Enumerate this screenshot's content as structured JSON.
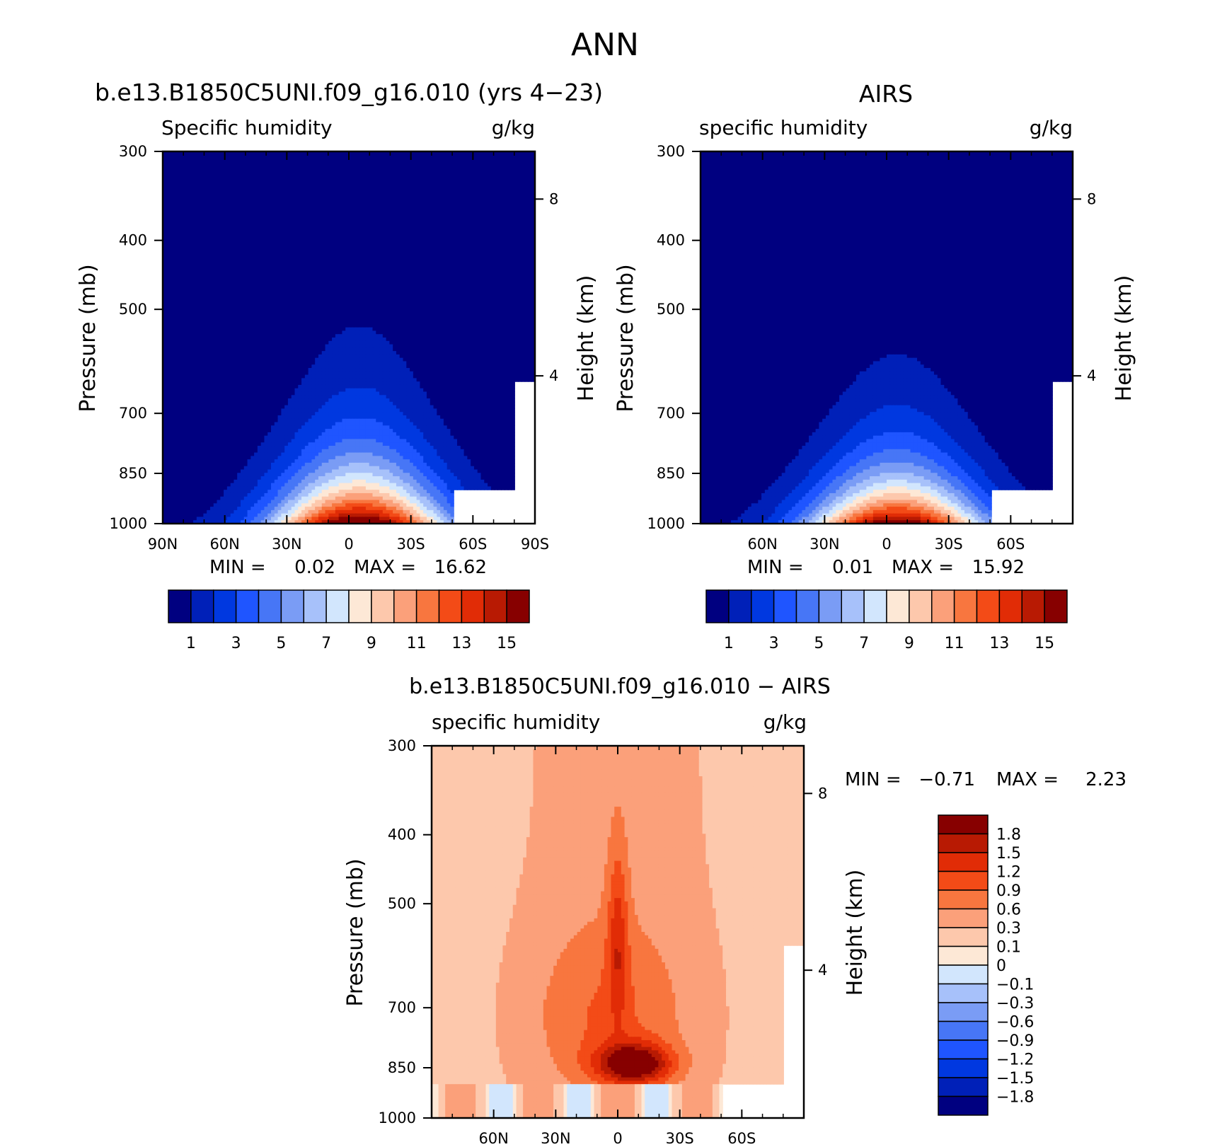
{
  "page": {
    "title": "ANN"
  },
  "chart_data": [
    {
      "type": "heatmap",
      "title": "b.e13.B1850C5UNI.f09_g16.010 (yrs 4−23)",
      "left_label": "Specific humidity",
      "right_label": "g/kg",
      "ylabel": "Pressure (mb)",
      "ylabel_right": "Height (km)",
      "x_ticks": [
        "90N",
        "60N",
        "30N",
        "0",
        "30S",
        "60S",
        "90S"
      ],
      "y_ticks": [
        "300",
        "400",
        "500",
        "700",
        "850",
        "1000"
      ],
      "y_right_ticks": [
        "8",
        "4"
      ],
      "min_label": "MIN =",
      "min_value": "0.02",
      "max_label": "MAX =",
      "max_value": "16.62",
      "levels": [
        1,
        2,
        3,
        4,
        5,
        6,
        7,
        8,
        9,
        10,
        11,
        12,
        13,
        14,
        15
      ],
      "colorbar_labels": [
        "1",
        "3",
        "5",
        "7",
        "9",
        "11",
        "13",
        "15"
      ],
      "peak_value": 16.62,
      "peak_latitude": -5
    },
    {
      "type": "heatmap",
      "title": "AIRS",
      "left_label": "specific humidity",
      "right_label": "g/kg",
      "ylabel": "Pressure (mb)",
      "ylabel_right": "Height (km)",
      "x_ticks": [
        "60N",
        "30N",
        "0",
        "30S",
        "60S"
      ],
      "y_ticks": [
        "300",
        "400",
        "500",
        "700",
        "850",
        "1000"
      ],
      "y_right_ticks": [
        "8",
        "4"
      ],
      "min_label": "MIN =",
      "min_value": "0.01",
      "max_label": "MAX =",
      "max_value": "15.92",
      "levels": [
        1,
        2,
        3,
        4,
        5,
        6,
        7,
        8,
        9,
        10,
        11,
        12,
        13,
        14,
        15
      ],
      "colorbar_labels": [
        "1",
        "3",
        "5",
        "7",
        "9",
        "11",
        "13",
        "15"
      ],
      "peak_value": 15.92,
      "peak_latitude": -5
    },
    {
      "type": "heatmap",
      "title": "b.e13.B1850C5UNI.f09_g16.010 − AIRS",
      "left_label": "specific humidity",
      "right_label": "g/kg",
      "ylabel": "Pressure (mb)",
      "ylabel_right": "Height (km)",
      "x_ticks": [
        "60N",
        "30N",
        "0",
        "30S",
        "60S"
      ],
      "y_ticks": [
        "300",
        "400",
        "500",
        "700",
        "850",
        "1000"
      ],
      "y_right_ticks": [
        "8",
        "4"
      ],
      "min_label": "MIN =",
      "min_value": "−0.71",
      "max_label": "MAX =",
      "max_value": "2.23",
      "levels": [
        -1.8,
        -1.5,
        -1.2,
        -0.9,
        -0.6,
        -0.3,
        -0.1,
        0,
        0.1,
        0.3,
        0.6,
        0.9,
        1.2,
        1.5,
        1.8
      ],
      "colorbar_labels": [
        "1.8",
        "1.5",
        "1.2",
        "0.9",
        "0.6",
        "0.3",
        "0.1",
        "0",
        "−0.1",
        "−0.3",
        "−0.6",
        "−0.9",
        "−1.2",
        "−1.5",
        "−1.8"
      ],
      "peak_value": 2.23,
      "peak_latitude": -5
    }
  ],
  "colors": {
    "humidity_scale": [
      "#000080",
      "#0020b8",
      "#0038e0",
      "#1f55ff",
      "#4776f6",
      "#7a9cf5",
      "#a7c1fa",
      "#d2e6fd",
      "#fde8d6",
      "#fdc8ac",
      "#fba07a",
      "#f8763f",
      "#f34b17",
      "#e12c06",
      "#b81a03",
      "#870000"
    ],
    "diff_scale": [
      "#000080",
      "#0020b8",
      "#0038e0",
      "#1f55ff",
      "#4776f6",
      "#7a9cf5",
      "#a7c1fa",
      "#d2e6fd",
      "#fde8d6",
      "#fdc8ac",
      "#fba07a",
      "#f8763f",
      "#f34b17",
      "#e12c06",
      "#b81a03",
      "#870000"
    ]
  }
}
